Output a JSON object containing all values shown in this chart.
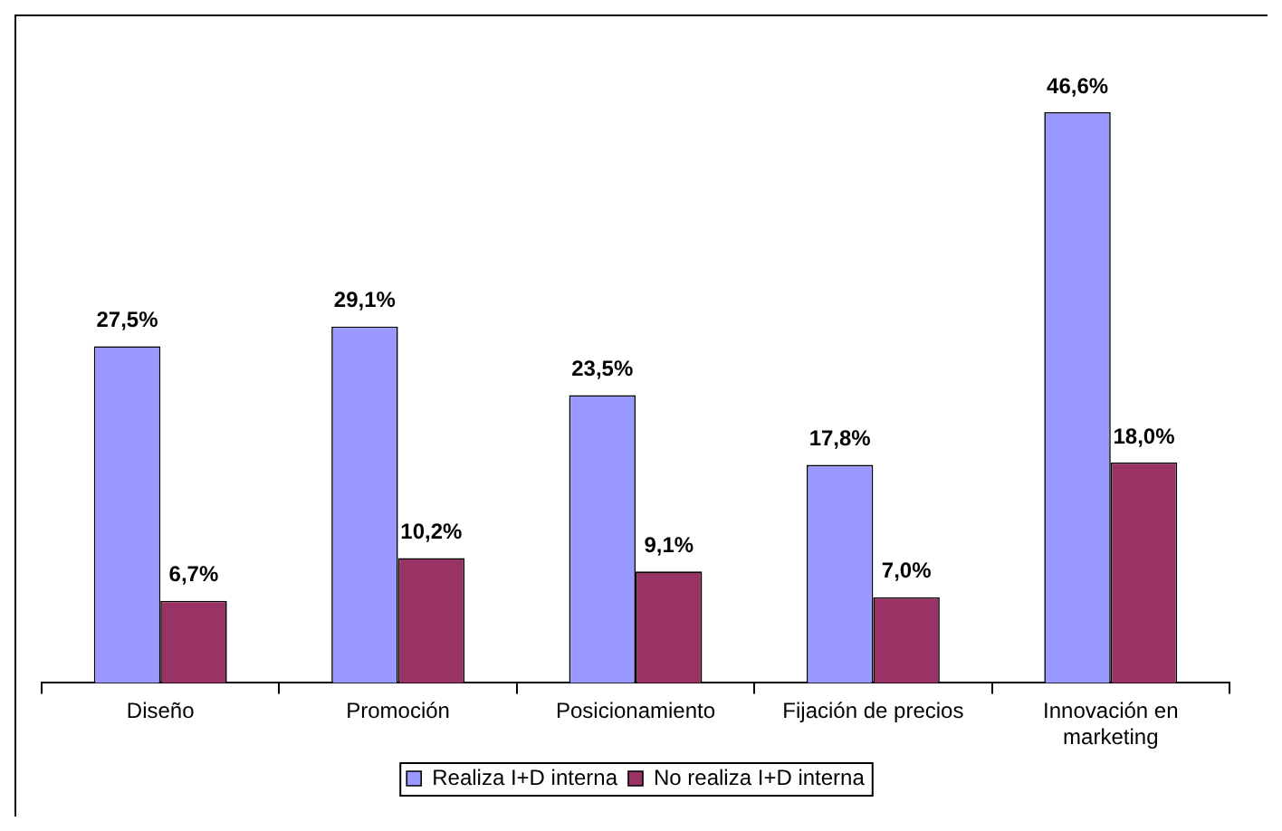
{
  "chart_data": {
    "type": "bar",
    "categories": [
      "Diseño",
      "Promoción",
      "Posicionamiento",
      "Fijación de precios",
      "Innovación en marketing"
    ],
    "series": [
      {
        "name": "Realiza I+D interna",
        "color": "#9999ff",
        "values": [
          27.5,
          29.1,
          23.5,
          17.8,
          46.6
        ],
        "value_labels": [
          "27,5%",
          "29,1%",
          "23,5%",
          "17,8%",
          "46,6%"
        ]
      },
      {
        "name": "No realiza I+D interna",
        "color": "#993366",
        "values": [
          6.7,
          10.2,
          9.1,
          7.0,
          18.0
        ],
        "value_labels": [
          "6,7%",
          "10,2%",
          "9,1%",
          "7,0%",
          "18,0%"
        ]
      }
    ],
    "legend": "bottom"
  }
}
